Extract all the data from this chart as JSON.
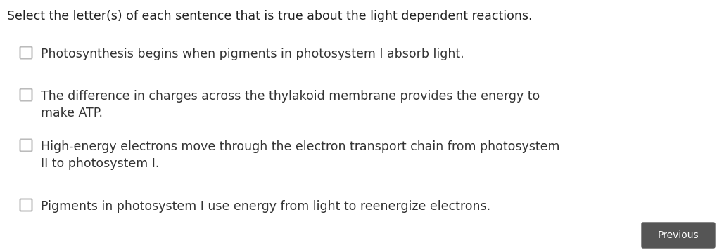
{
  "background_color": "#ffffff",
  "title": "Select the letter(s) of each sentence that is true about the light dependent reactions.",
  "title_fontsize": 12.5,
  "title_color": "#222222",
  "options": [
    {
      "text": "Photosynthesis begins when pigments in photosystem I absorb light.",
      "multiline": false
    },
    {
      "text": "The difference in charges across the thylakoid membrane provides the energy to\nmake ATP.",
      "multiline": true
    },
    {
      "text": "High-energy electrons move through the electron transport chain from photosystem\nII to photosystem I.",
      "multiline": true
    },
    {
      "text": "Pigments in photosystem I use energy from light to reenergize electrons.",
      "multiline": false
    }
  ],
  "text_fontsize": 12.5,
  "text_color": "#333333",
  "checkbox_color": "#bbbbbb",
  "button_text": "Previous",
  "button_bg": "#555555",
  "button_text_color": "#ffffff",
  "button_fontsize": 10
}
